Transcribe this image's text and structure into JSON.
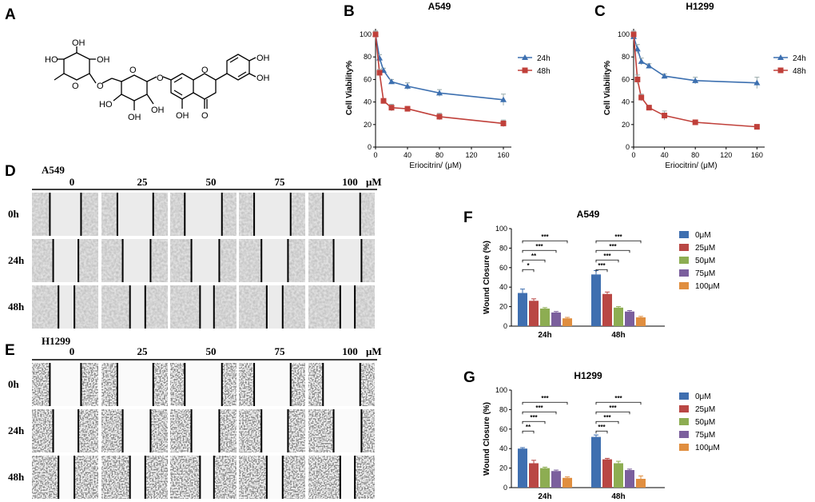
{
  "panel_labels": {
    "A": "A",
    "B": "B",
    "C": "C",
    "D": "D",
    "E": "E",
    "F": "F",
    "G": "G"
  },
  "molecule": {
    "atoms": {
      "sugar1_oh1": "HO",
      "sugar1_oh2": "OH",
      "sugar1_oh3": "OH",
      "sugar1_ring_o": "O",
      "link_o1": "O",
      "link_o2": "O",
      "sugar2_ring_o": "O",
      "sugar2_oh1": "HO",
      "sugar2_oh2": "OH",
      "sugar2_oh3": "OH",
      "chromone_o": "O",
      "ring_oh": "OH",
      "keto_o": "O",
      "cat_oh1": "OH",
      "cat_oh2": "OH",
      "link_o3": "O"
    }
  },
  "viability": [
    {
      "id": "B",
      "cell_line": "A549",
      "ylabel": "Cell Viability%",
      "xlabel": "Eriocitrin/  (μM)",
      "xticks": [
        0,
        40,
        80,
        120,
        160
      ],
      "yticks": [
        0,
        20,
        40,
        60,
        80,
        100
      ],
      "series": [
        {
          "name": "24h",
          "color": "#3d70b0",
          "marker": "triangle",
          "x": [
            0,
            5,
            10,
            20,
            40,
            80,
            160
          ],
          "y": [
            100,
            79,
            68,
            58,
            54,
            48,
            42
          ],
          "err": [
            3,
            3,
            2,
            2,
            3,
            3,
            5
          ]
        },
        {
          "name": "48h",
          "color": "#c0403a",
          "marker": "square",
          "x": [
            0,
            5,
            10,
            20,
            40,
            80,
            160
          ],
          "y": [
            100,
            66,
            41,
            35,
            34,
            27,
            21
          ],
          "err": [
            3,
            3,
            2,
            3,
            2,
            3,
            3
          ]
        }
      ]
    },
    {
      "id": "C",
      "cell_line": "H1299",
      "ylabel": "Cell Viability%",
      "xlabel": "Eriocitrin/  (μM)",
      "xticks": [
        0,
        40,
        80,
        120,
        160
      ],
      "yticks": [
        0,
        20,
        40,
        60,
        80,
        100
      ],
      "series": [
        {
          "name": "24h",
          "color": "#3d70b0",
          "marker": "triangle",
          "x": [
            0,
            5,
            10,
            20,
            40,
            80,
            160
          ],
          "y": [
            98,
            87,
            76,
            72,
            63,
            59,
            57
          ],
          "err": [
            3,
            4,
            3,
            2,
            2,
            3,
            5
          ]
        },
        {
          "name": "48h",
          "color": "#c0403a",
          "marker": "square",
          "x": [
            0,
            5,
            10,
            20,
            40,
            80,
            160
          ],
          "y": [
            100,
            60,
            44,
            35,
            28,
            22,
            18
          ],
          "err": [
            3,
            4,
            3,
            2,
            4,
            2,
            2
          ]
        }
      ]
    }
  ],
  "wound_images": [
    {
      "id": "D",
      "cell_line": "A549",
      "unit": "μM",
      "concentrations": [
        "0",
        "25",
        "50",
        "75",
        "100"
      ],
      "times": [
        "0h",
        "24h",
        "48h"
      ],
      "style": "faint"
    },
    {
      "id": "E",
      "cell_line": "H1299",
      "unit": "μM",
      "concentrations": [
        "0",
        "25",
        "50",
        "75",
        "100"
      ],
      "times": [
        "0h",
        "24h",
        "48h"
      ],
      "style": "dotted"
    }
  ],
  "wound_closure": [
    {
      "id": "F",
      "cell_line": "A549",
      "ylabel": "Wound Closure  (%)",
      "yticks": [
        0,
        20,
        40,
        60,
        80,
        100
      ],
      "groups": [
        "24h",
        "48h"
      ],
      "legend": [
        "0μM",
        "25μM",
        "50μM",
        "75μM",
        "100μM"
      ],
      "colors": [
        "#3f6fb0",
        "#b94744",
        "#8dad52",
        "#7b5f9d",
        "#e08e3f"
      ],
      "values": [
        [
          34,
          26,
          18,
          14,
          8
        ],
        [
          53,
          33,
          19,
          15,
          9
        ]
      ],
      "errors": [
        [
          4,
          2,
          1,
          1,
          1
        ],
        [
          4,
          2,
          1,
          1,
          1
        ]
      ],
      "sig": [
        [
          "*",
          "**",
          "***",
          "***"
        ],
        [
          "***",
          "***",
          "***",
          "***"
        ]
      ]
    },
    {
      "id": "G",
      "cell_line": "H1299",
      "ylabel": "Wound Closure  (%)",
      "yticks": [
        0,
        20,
        40,
        60,
        80,
        100
      ],
      "groups": [
        "24h",
        "48h"
      ],
      "legend": [
        "0μM",
        "25μM",
        "50μM",
        "75μM",
        "100μM"
      ],
      "colors": [
        "#3f6fb0",
        "#b94744",
        "#8dad52",
        "#7b5f9d",
        "#e08e3f"
      ],
      "values": [
        [
          40,
          25,
          20,
          17,
          10
        ],
        [
          52,
          29,
          25,
          18,
          9
        ]
      ],
      "errors": [
        [
          1,
          3,
          1,
          1,
          1
        ],
        [
          2,
          1,
          2,
          1,
          3
        ]
      ],
      "sig": [
        [
          "**",
          "***",
          "***",
          "***"
        ],
        [
          "***",
          "***",
          "***",
          "***"
        ]
      ]
    }
  ]
}
